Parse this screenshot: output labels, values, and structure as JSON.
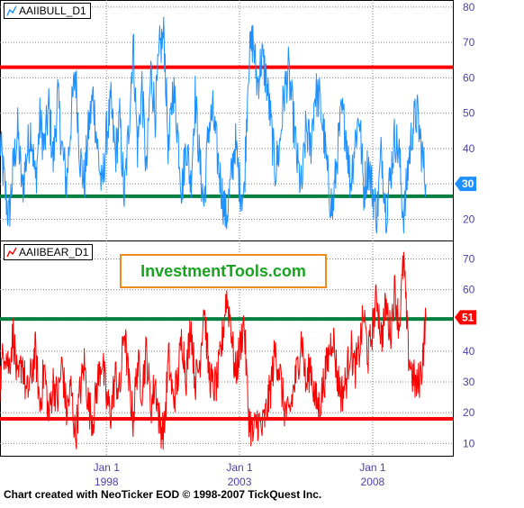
{
  "footer": "Chart created with NeoTicker EOD © 1998-2007 TickQuest Inc.",
  "watermark": "InvestmentTools.com",
  "colors": {
    "bull_series": "#1e90ff",
    "bear_series": "#ff0000",
    "red_level": "#ff0000",
    "green_level": "#008040",
    "grid": "#808080",
    "axis_text": "#4b3fb0",
    "watermark_text": "#1aa320",
    "watermark_border": "#f08c1e"
  },
  "chart_data": [
    {
      "type": "line",
      "panel": "top",
      "title": "AAIIBULL_D1",
      "x_start": "1994-01",
      "x_end": "2010-01",
      "ylim": [
        14,
        82
      ],
      "yticks": [
        20,
        30,
        40,
        50,
        60,
        70,
        80
      ],
      "grid": true,
      "last_value": 30,
      "last_value_label": "30",
      "reference_lines": [
        {
          "value": 63,
          "color": "red"
        },
        {
          "value": 26.5,
          "color": "green"
        }
      ],
      "series": [
        {
          "color": "#1e90ff",
          "points": [
            [
              "1994-01",
              42
            ],
            [
              "1994-03",
              30
            ],
            [
              "1994-05",
              20
            ],
            [
              "1994-07",
              35
            ],
            [
              "1994-09",
              45
            ],
            [
              "1994-11",
              28
            ],
            [
              "1995-01",
              38
            ],
            [
              "1995-03",
              46
            ],
            [
              "1995-05",
              30
            ],
            [
              "1995-07",
              48
            ],
            [
              "1995-09",
              40
            ],
            [
              "1995-11",
              52
            ],
            [
              "1996-01",
              36
            ],
            [
              "1996-03",
              55
            ],
            [
              "1996-05",
              40
            ],
            [
              "1996-07",
              30
            ],
            [
              "1996-09",
              48
            ],
            [
              "1996-11",
              62
            ],
            [
              "1997-01",
              38
            ],
            [
              "1997-03",
              30
            ],
            [
              "1997-05",
              46
            ],
            [
              "1997-07",
              55
            ],
            [
              "1997-09",
              40
            ],
            [
              "1997-11",
              28
            ],
            [
              "1998-01",
              44
            ],
            [
              "1998-03",
              52
            ],
            [
              "1998-05",
              38
            ],
            [
              "1998-07",
              48
            ],
            [
              "1998-09",
              26
            ],
            [
              "1998-11",
              45
            ],
            [
              "1999-01",
              70
            ],
            [
              "1999-03",
              40
            ],
            [
              "1999-05",
              58
            ],
            [
              "1999-07",
              32
            ],
            [
              "1999-09",
              62
            ],
            [
              "1999-11",
              50
            ],
            [
              "2000-01",
              68
            ],
            [
              "2000-03",
              72
            ],
            [
              "2000-05",
              38
            ],
            [
              "2000-07",
              58
            ],
            [
              "2000-09",
              46
            ],
            [
              "2000-11",
              28
            ],
            [
              "2001-01",
              42
            ],
            [
              "2001-03",
              30
            ],
            [
              "2001-05",
              55
            ],
            [
              "2001-07",
              36
            ],
            [
              "2001-09",
              24
            ],
            [
              "2001-11",
              46
            ],
            [
              "2002-01",
              50
            ],
            [
              "2002-03",
              38
            ],
            [
              "2002-05",
              28
            ],
            [
              "2002-07",
              20
            ],
            [
              "2002-09",
              30
            ],
            [
              "2002-11",
              42
            ],
            [
              "2003-01",
              30
            ],
            [
              "2003-03",
              26
            ],
            [
              "2003-05",
              64
            ],
            [
              "2003-07",
              71
            ],
            [
              "2003-09",
              58
            ],
            [
              "2003-11",
              66
            ],
            [
              "2004-01",
              60
            ],
            [
              "2004-03",
              48
            ],
            [
              "2004-05",
              34
            ],
            [
              "2004-07",
              40
            ],
            [
              "2004-09",
              55
            ],
            [
              "2004-11",
              62
            ],
            [
              "2005-01",
              50
            ],
            [
              "2005-03",
              36
            ],
            [
              "2005-05",
              28
            ],
            [
              "2005-07",
              46
            ],
            [
              "2005-09",
              40
            ],
            [
              "2005-11",
              56
            ],
            [
              "2006-01",
              54
            ],
            [
              "2006-03",
              44
            ],
            [
              "2006-05",
              30
            ],
            [
              "2006-07",
              22
            ],
            [
              "2006-09",
              38
            ],
            [
              "2006-11",
              50
            ],
            [
              "2007-01",
              45
            ],
            [
              "2007-03",
              30
            ],
            [
              "2007-05",
              42
            ],
            [
              "2007-07",
              50
            ],
            [
              "2007-09",
              28
            ],
            [
              "2007-11",
              36
            ],
            [
              "2008-01",
              28
            ],
            [
              "2008-03",
              21
            ],
            [
              "2008-05",
              40
            ],
            [
              "2008-07",
              22
            ],
            [
              "2008-09",
              32
            ],
            [
              "2008-11",
              44
            ],
            [
              "2009-01",
              38
            ],
            [
              "2009-03",
              19
            ],
            [
              "2009-05",
              35
            ],
            [
              "2009-07",
              46
            ],
            [
              "2009-09",
              50
            ],
            [
              "2009-11",
              40
            ],
            [
              "2010-01",
              30
            ]
          ]
        }
      ]
    },
    {
      "type": "line",
      "panel": "bottom",
      "title": "AAIIBEAR_D1",
      "x_start": "1994-01",
      "x_end": "2010-01",
      "ylim": [
        6,
        76
      ],
      "yticks": [
        10,
        20,
        30,
        40,
        50,
        60,
        70
      ],
      "grid": true,
      "last_value": 51,
      "last_value_label": "51",
      "reference_lines": [
        {
          "value": 50.5,
          "color": "green"
        },
        {
          "value": 18,
          "color": "red"
        }
      ],
      "xticks": [
        {
          "date": "1998-01",
          "line1": "Jan 1",
          "line2": "1998"
        },
        {
          "date": "2003-01",
          "line1": "Jan 1",
          "line2": "2003"
        },
        {
          "date": "2008-01",
          "line1": "Jan 1",
          "line2": "2008"
        }
      ],
      "series": [
        {
          "color": "#ff0000",
          "points": [
            [
              "1994-01",
              30
            ],
            [
              "1994-03",
              42
            ],
            [
              "1994-05",
              35
            ],
            [
              "1994-07",
              46
            ],
            [
              "1994-09",
              28
            ],
            [
              "1994-11",
              38
            ],
            [
              "1995-01",
              25
            ],
            [
              "1995-03",
              32
            ],
            [
              "1995-05",
              40
            ],
            [
              "1995-07",
              22
            ],
            [
              "1995-09",
              35
            ],
            [
              "1995-11",
              18
            ],
            [
              "1996-01",
              30
            ],
            [
              "1996-03",
              24
            ],
            [
              "1996-05",
              36
            ],
            [
              "1996-07",
              20
            ],
            [
              "1996-09",
              28
            ],
            [
              "1996-11",
              12
            ],
            [
              "1997-01",
              26
            ],
            [
              "1997-03",
              36
            ],
            [
              "1997-05",
              22
            ],
            [
              "1997-07",
              18
            ],
            [
              "1997-09",
              30
            ],
            [
              "1997-11",
              38
            ],
            [
              "1998-01",
              24
            ],
            [
              "1998-03",
              20
            ],
            [
              "1998-05",
              32
            ],
            [
              "1998-07",
              26
            ],
            [
              "1998-09",
              48
            ],
            [
              "1998-11",
              30
            ],
            [
              "1999-01",
              18
            ],
            [
              "1999-03",
              36
            ],
            [
              "1999-05",
              28
            ],
            [
              "1999-07",
              40
            ],
            [
              "1999-09",
              22
            ],
            [
              "1999-11",
              30
            ],
            [
              "2000-01",
              16
            ],
            [
              "2000-03",
              14
            ],
            [
              "2000-05",
              38
            ],
            [
              "2000-07",
              24
            ],
            [
              "2000-09",
              30
            ],
            [
              "2000-11",
              45
            ],
            [
              "2001-01",
              32
            ],
            [
              "2001-03",
              50
            ],
            [
              "2001-05",
              30
            ],
            [
              "2001-07",
              36
            ],
            [
              "2001-09",
              56
            ],
            [
              "2001-11",
              34
            ],
            [
              "2002-01",
              28
            ],
            [
              "2002-03",
              30
            ],
            [
              "2002-05",
              42
            ],
            [
              "2002-07",
              58
            ],
            [
              "2002-09",
              50
            ],
            [
              "2002-11",
              32
            ],
            [
              "2003-01",
              40
            ],
            [
              "2003-03",
              50
            ],
            [
              "2003-05",
              20
            ],
            [
              "2003-07",
              12
            ],
            [
              "2003-09",
              18
            ],
            [
              "2003-11",
              14
            ],
            [
              "2004-01",
              20
            ],
            [
              "2004-03",
              28
            ],
            [
              "2004-05",
              40
            ],
            [
              "2004-07",
              34
            ],
            [
              "2004-09",
              22
            ],
            [
              "2004-11",
              18
            ],
            [
              "2005-01",
              26
            ],
            [
              "2005-03",
              34
            ],
            [
              "2005-05",
              45
            ],
            [
              "2005-07",
              28
            ],
            [
              "2005-09",
              36
            ],
            [
              "2005-11",
              24
            ],
            [
              "2006-01",
              22
            ],
            [
              "2006-03",
              30
            ],
            [
              "2006-05",
              38
            ],
            [
              "2006-07",
              46
            ],
            [
              "2006-09",
              32
            ],
            [
              "2006-11",
              26
            ],
            [
              "2007-01",
              30
            ],
            [
              "2007-03",
              42
            ],
            [
              "2007-05",
              34
            ],
            [
              "2007-07",
              40
            ],
            [
              "2007-09",
              52
            ],
            [
              "2007-11",
              38
            ],
            [
              "2008-01",
              48
            ],
            [
              "2008-03",
              58
            ],
            [
              "2008-05",
              44
            ],
            [
              "2008-07",
              55
            ],
            [
              "2008-09",
              46
            ],
            [
              "2008-11",
              60
            ],
            [
              "2009-01",
              48
            ],
            [
              "2009-03",
              70
            ],
            [
              "2009-05",
              40
            ],
            [
              "2009-07",
              32
            ],
            [
              "2009-09",
              28
            ],
            [
              "2009-11",
              34
            ],
            [
              "2010-01",
              51
            ]
          ]
        }
      ]
    }
  ]
}
